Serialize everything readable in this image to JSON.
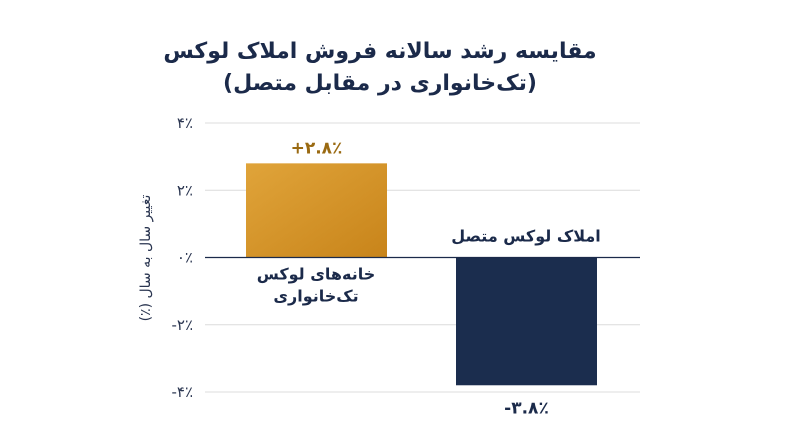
{
  "chart_data": {
    "type": "bar",
    "title_lines": [
      "مقایسه رشد سالانه فروش املاک لوکس",
      "(تک‌خانواری در مقابل متصل)"
    ],
    "ylabel": "تغییر سال به سال (٪)",
    "xlabel": "",
    "ylim": [
      -4.4,
      4.2
    ],
    "yticks": [
      4,
      2,
      0,
      -2,
      -4
    ],
    "ytick_labels": [
      "۴٪",
      "۲٪",
      "۰٪",
      "-۲٪",
      "-۴٪"
    ],
    "grid": true,
    "categories": [
      [
        "خانه‌های لوکس",
        "تک‌خانواری"
      ],
      [
        "املاک لوکس متصل"
      ]
    ],
    "values": [
      2.8,
      -3.8
    ],
    "value_labels": [
      "+۲.۸٪",
      "-۳.۸٪"
    ],
    "colors": [
      "#d08c1e",
      "#1b2d4e"
    ],
    "label_colors": [
      "#9a6a12",
      "#1b2a4a"
    ]
  }
}
